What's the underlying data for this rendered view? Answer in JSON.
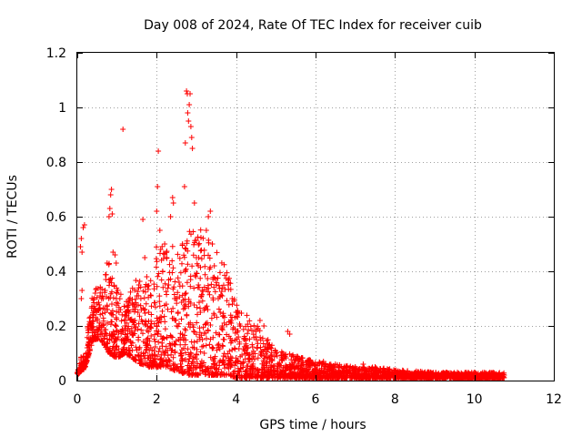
{
  "chart_data": {
    "type": "scatter",
    "title": "Day 008 of 2024, Rate Of TEC Index for receiver cuib",
    "xlabel": "GPS time / hours",
    "ylabel": "ROTI / TECUs",
    "xlim": [
      0,
      12
    ],
    "ylim": [
      0,
      1.2
    ],
    "x_ticks": [
      0,
      2,
      4,
      6,
      8,
      10,
      12
    ],
    "x_tick_labels": [
      "0",
      "2",
      "4",
      "6",
      "8",
      "10",
      "12"
    ],
    "y_ticks": [
      0,
      0.2,
      0.4,
      0.6,
      0.8,
      1,
      1.2
    ],
    "y_tick_labels": [
      "0",
      "0.2",
      "0.4",
      "0.6",
      "0.8",
      "1",
      "1.2"
    ],
    "grid": true,
    "marker": "+",
    "series": [
      {
        "name": "ROTI",
        "color": "#ff0000",
        "points": [
          [
            0.0,
            0.03
          ],
          [
            0.05,
            0.03
          ],
          [
            0.08,
            0.49
          ],
          [
            0.1,
            0.52
          ],
          [
            0.12,
            0.47
          ],
          [
            0.15,
            0.56
          ],
          [
            0.18,
            0.57
          ],
          [
            0.1,
            0.3
          ],
          [
            0.12,
            0.33
          ],
          [
            0.14,
            0.06
          ],
          [
            0.16,
            0.04
          ],
          [
            0.2,
            0.08
          ],
          [
            0.22,
            0.1
          ],
          [
            0.25,
            0.12
          ],
          [
            0.28,
            0.13
          ],
          [
            0.3,
            0.11
          ],
          [
            0.35,
            0.2
          ],
          [
            0.4,
            0.22
          ],
          [
            0.42,
            0.3
          ],
          [
            0.45,
            0.32
          ],
          [
            0.5,
            0.28
          ],
          [
            0.55,
            0.2
          ],
          [
            0.6,
            0.18
          ],
          [
            0.65,
            0.3
          ],
          [
            0.7,
            0.33
          ],
          [
            0.72,
            0.37
          ],
          [
            0.75,
            0.43
          ],
          [
            0.8,
            0.6
          ],
          [
            0.82,
            0.63
          ],
          [
            0.84,
            0.68
          ],
          [
            0.86,
            0.7
          ],
          [
            0.88,
            0.61
          ],
          [
            0.9,
            0.47
          ],
          [
            0.95,
            0.46
          ],
          [
            0.98,
            0.43
          ],
          [
            1.0,
            0.32
          ],
          [
            1.05,
            0.25
          ],
          [
            1.1,
            0.18
          ],
          [
            1.15,
            0.92
          ],
          [
            1.2,
            0.2
          ],
          [
            1.25,
            0.16
          ],
          [
            1.3,
            0.12
          ],
          [
            1.35,
            0.14
          ],
          [
            1.4,
            0.17
          ],
          [
            1.45,
            0.22
          ],
          [
            1.5,
            0.31
          ],
          [
            1.55,
            0.35
          ],
          [
            1.6,
            0.3
          ],
          [
            1.65,
            0.59
          ],
          [
            1.7,
            0.45
          ],
          [
            1.75,
            0.38
          ],
          [
            1.8,
            0.25
          ],
          [
            1.85,
            0.12
          ],
          [
            1.9,
            0.09
          ],
          [
            1.95,
            0.08
          ],
          [
            2.0,
            0.2
          ],
          [
            2.0,
            0.62
          ],
          [
            2.02,
            0.71
          ],
          [
            2.04,
            0.84
          ],
          [
            2.08,
            0.55
          ],
          [
            2.1,
            0.48
          ],
          [
            2.15,
            0.4
          ],
          [
            2.2,
            0.5
          ],
          [
            2.25,
            0.45
          ],
          [
            2.3,
            0.35
          ],
          [
            2.35,
            0.6
          ],
          [
            2.4,
            0.67
          ],
          [
            2.42,
            0.65
          ],
          [
            2.45,
            0.3
          ],
          [
            2.5,
            0.2
          ],
          [
            2.55,
            0.15
          ],
          [
            2.6,
            0.1
          ],
          [
            2.65,
            0.5
          ],
          [
            2.7,
            0.71
          ],
          [
            2.72,
            0.87
          ],
          [
            2.75,
            1.06
          ],
          [
            2.77,
            1.05
          ],
          [
            2.78,
            0.98
          ],
          [
            2.8,
            0.95
          ],
          [
            2.82,
            1.01
          ],
          [
            2.84,
            1.05
          ],
          [
            2.86,
            0.93
          ],
          [
            2.88,
            0.89
          ],
          [
            2.9,
            0.85
          ],
          [
            2.95,
            0.65
          ],
          [
            3.0,
            0.45
          ],
          [
            3.05,
            0.35
          ],
          [
            3.1,
            0.25
          ],
          [
            3.15,
            0.15
          ],
          [
            3.2,
            0.1
          ],
          [
            3.25,
            0.55
          ],
          [
            3.3,
            0.6
          ],
          [
            3.35,
            0.62
          ],
          [
            3.4,
            0.5
          ],
          [
            3.45,
            0.42
          ],
          [
            3.5,
            0.35
          ],
          [
            3.55,
            0.3
          ],
          [
            3.6,
            0.25
          ],
          [
            3.65,
            0.2
          ],
          [
            3.7,
            0.15
          ],
          [
            3.8,
            0.35
          ],
          [
            3.9,
            0.3
          ],
          [
            4.0,
            0.25
          ],
          [
            4.1,
            0.2
          ],
          [
            4.2,
            0.15
          ],
          [
            4.3,
            0.12
          ],
          [
            4.4,
            0.1
          ],
          [
            4.5,
            0.18
          ],
          [
            4.6,
            0.22
          ],
          [
            4.7,
            0.2
          ],
          [
            4.8,
            0.12
          ],
          [
            5.0,
            0.1
          ],
          [
            5.2,
            0.08
          ],
          [
            5.3,
            0.18
          ],
          [
            5.35,
            0.17
          ],
          [
            5.5,
            0.08
          ],
          [
            5.8,
            0.07
          ],
          [
            6.0,
            0.06
          ],
          [
            6.2,
            0.07
          ],
          [
            6.5,
            0.06
          ],
          [
            7.0,
            0.05
          ],
          [
            7.2,
            0.06
          ],
          [
            7.5,
            0.05
          ],
          [
            8.0,
            0.03
          ],
          [
            8.5,
            0.03
          ],
          [
            9.0,
            0.02
          ],
          [
            9.5,
            0.02
          ],
          [
            10.0,
            0.03
          ],
          [
            10.5,
            0.02
          ],
          [
            10.75,
            0.02
          ]
        ]
      }
    ],
    "envelope": [
      [
        0.0,
        0.02,
        0.05
      ],
      [
        0.2,
        0.05,
        0.14
      ],
      [
        0.4,
        0.15,
        0.33
      ],
      [
        0.6,
        0.15,
        0.35
      ],
      [
        0.8,
        0.1,
        0.45
      ],
      [
        1.0,
        0.08,
        0.35
      ],
      [
        1.2,
        0.1,
        0.3
      ],
      [
        1.4,
        0.08,
        0.35
      ],
      [
        1.6,
        0.06,
        0.4
      ],
      [
        1.8,
        0.05,
        0.35
      ],
      [
        2.0,
        0.05,
        0.5
      ],
      [
        2.2,
        0.05,
        0.5
      ],
      [
        2.4,
        0.04,
        0.5
      ],
      [
        2.6,
        0.03,
        0.5
      ],
      [
        2.8,
        0.02,
        0.55
      ],
      [
        3.0,
        0.02,
        0.55
      ],
      [
        3.2,
        0.02,
        0.58
      ],
      [
        3.4,
        0.02,
        0.55
      ],
      [
        3.6,
        0.02,
        0.45
      ],
      [
        3.8,
        0.02,
        0.4
      ],
      [
        4.0,
        0.01,
        0.3
      ],
      [
        4.2,
        0.01,
        0.25
      ],
      [
        4.4,
        0.01,
        0.22
      ],
      [
        4.6,
        0.01,
        0.2
      ],
      [
        4.8,
        0.01,
        0.15
      ],
      [
        5.0,
        0.01,
        0.12
      ],
      [
        5.5,
        0.01,
        0.09
      ],
      [
        6.0,
        0.01,
        0.07
      ],
      [
        6.5,
        0.01,
        0.06
      ],
      [
        7.0,
        0.01,
        0.05
      ],
      [
        7.5,
        0.01,
        0.05
      ],
      [
        8.0,
        0.01,
        0.04
      ],
      [
        9.0,
        0.01,
        0.03
      ],
      [
        10.0,
        0.01,
        0.03
      ],
      [
        10.75,
        0.01,
        0.03
      ]
    ]
  }
}
